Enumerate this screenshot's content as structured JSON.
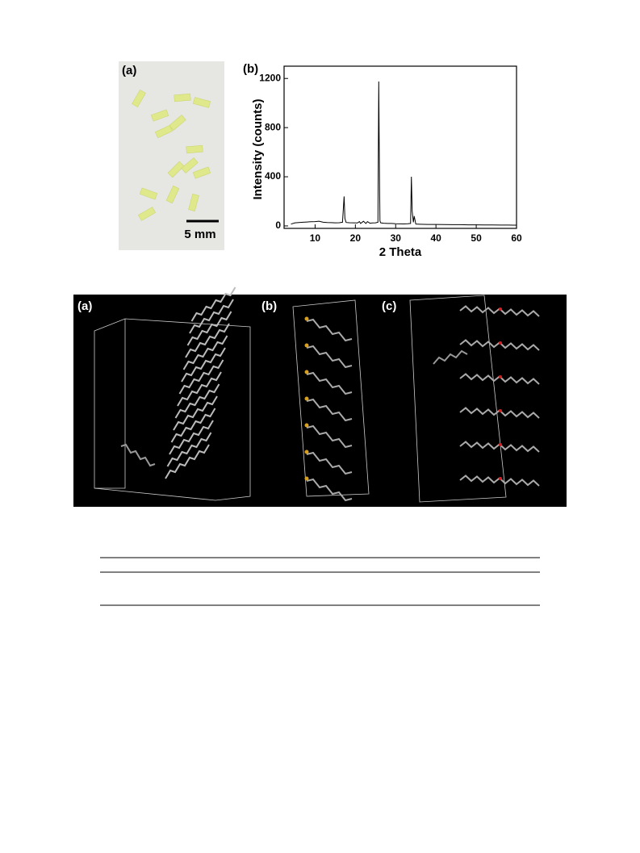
{
  "figure_top": {
    "photo_label": "(a)",
    "scale_bar": "5 mm",
    "chart_label": "(b)"
  },
  "chart_data": {
    "type": "line",
    "xlabel": "2 Theta",
    "ylabel": "Intensity (counts)",
    "x": [
      4,
      5,
      6,
      7,
      8,
      9,
      10,
      11,
      12,
      13,
      14,
      15,
      16,
      16.8,
      17.2,
      17.4,
      17.7,
      18.5,
      19.5,
      20.5,
      21,
      21.3,
      22,
      22.6,
      23,
      23.6,
      24.2,
      25,
      25.6,
      25.8,
      25.9,
      26.0,
      26.1,
      26.3,
      27,
      28,
      29,
      30,
      31,
      32,
      33,
      33.7,
      33.9,
      34.1,
      34.4,
      34.6,
      35,
      36,
      38,
      40,
      42,
      44,
      46,
      48,
      50,
      52,
      54,
      56,
      58,
      60
    ],
    "series": [
      {
        "color": "#000000",
        "values": [
          15,
          25,
          28,
          30,
          32,
          34,
          35,
          38,
          30,
          28,
          27,
          25,
          26,
          30,
          240,
          60,
          28,
          26,
          25,
          24,
          35,
          20,
          38,
          20,
          35,
          22,
          24,
          25,
          30,
          1175,
          720,
          360,
          40,
          25,
          22,
          20,
          20,
          18,
          17,
          16,
          18,
          20,
          400,
          120,
          30,
          80,
          15,
          14,
          12,
          12,
          11,
          10,
          10,
          9,
          9,
          8,
          8,
          7,
          7,
          6
        ]
      }
    ],
    "xlim": [
      2.3,
      60
    ],
    "ylim": [
      -20,
      1300
    ],
    "xticks": [
      10,
      20,
      30,
      40,
      50,
      60
    ],
    "yticks": [
      0,
      400,
      800,
      1200
    ]
  },
  "figure_bottom": {
    "panel_labels": [
      "(a)",
      "(b)",
      "(c)"
    ]
  }
}
